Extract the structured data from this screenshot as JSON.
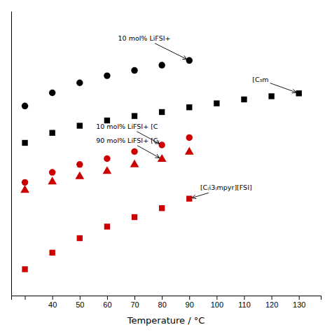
{
  "chart_data": {
    "type": "scatter",
    "xlabel": "Temperature / °C",
    "xlim": [
      25,
      138
    ],
    "ylim": [
      0.0,
      1.08
    ],
    "xticks": [
      {
        "value": 30,
        "label": null
      },
      40,
      50,
      60,
      70,
      80,
      90,
      100,
      110,
      120,
      130
    ],
    "yticks": [],
    "tick_labels": "x",
    "grid": false,
    "series": [
      {
        "color": "black",
        "marker": "circle",
        "x": [
          30,
          40,
          50,
          60,
          70,
          80,
          90
        ],
        "values": [
          0.72,
          0.77,
          0.808,
          0.835,
          0.855,
          0.875,
          0.893
        ]
      },
      {
        "color": "black",
        "marker": "square",
        "x": [
          30,
          40,
          50,
          60,
          70,
          80,
          90,
          100,
          110,
          120,
          130
        ],
        "values": [
          0.58,
          0.618,
          0.645,
          0.665,
          0.682,
          0.697,
          0.715,
          0.73,
          0.745,
          0.757,
          0.768
        ]
      },
      {
        "color": "#cc0000",
        "marker": "circle",
        "x": [
          30,
          40,
          50,
          60,
          70,
          80,
          90
        ],
        "values": [
          0.43,
          0.468,
          0.498,
          0.52,
          0.547,
          0.572,
          0.6
        ]
      },
      {
        "color": "#cc0000",
        "marker": "triangle",
        "x": [
          30,
          40,
          50,
          60,
          70,
          80,
          90
        ],
        "values": [
          0.4,
          0.432,
          0.452,
          0.472,
          0.497,
          0.518,
          0.545
        ]
      },
      {
        "color": "#cc0000",
        "marker": "square",
        "x": [
          30,
          40,
          50,
          60,
          70,
          80,
          90
        ],
        "values": [
          0.1,
          0.163,
          0.218,
          0.262,
          0.298,
          0.332,
          0.368
        ]
      }
    ],
    "annotations": [
      {
        "text": "10 mol% LiFSI+",
        "xy": [
          90,
          0.893
        ],
        "xytext": [
          64,
          0.978
        ]
      },
      {
        "text": "[C₃m",
        "xy": [
          130,
          0.768
        ],
        "xytext": [
          113,
          0.82
        ]
      },
      {
        "text": "10 mol% LiFSI+ [C",
        "xy": [
          80,
          0.572
        ],
        "xytext": [
          56,
          0.643
        ]
      },
      {
        "text": "90 mol% LiFSI+ [C₍",
        "xy": [
          80,
          0.518
        ],
        "xytext": [
          56,
          0.59
        ]
      },
      {
        "text": "[C₍i3₎mpyr][FSI]",
        "xy": [
          90,
          0.368
        ],
        "xytext": [
          94,
          0.41
        ]
      }
    ]
  }
}
